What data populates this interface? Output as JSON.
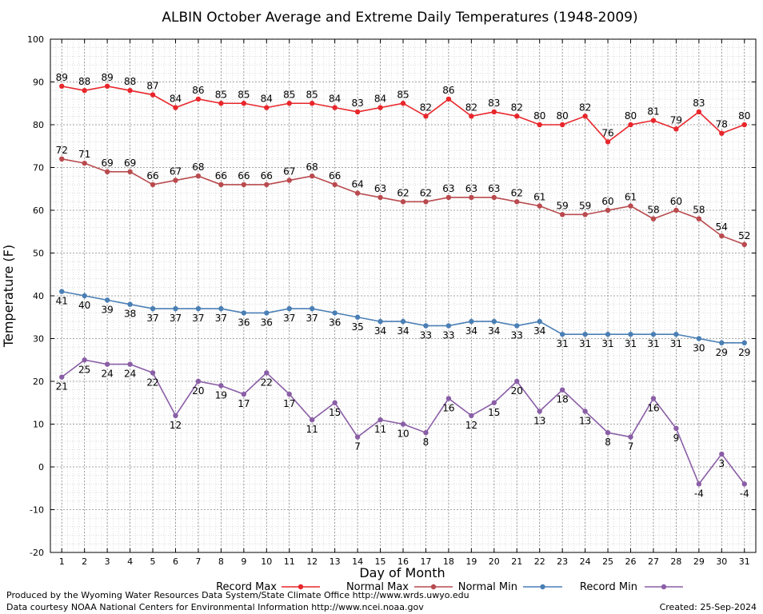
{
  "chart_data": {
    "type": "line",
    "title": "ALBIN October Average and Extreme Daily Temperatures (1948-2009)",
    "xlabel": "Day of Month",
    "ylabel": "Temperature (F)",
    "ylim": [
      -20,
      100
    ],
    "yticks": [
      -20,
      -10,
      0,
      10,
      20,
      30,
      40,
      50,
      60,
      70,
      80,
      90,
      100
    ],
    "x": [
      1,
      2,
      3,
      4,
      5,
      6,
      7,
      8,
      9,
      10,
      11,
      12,
      13,
      14,
      15,
      16,
      17,
      18,
      19,
      20,
      21,
      22,
      23,
      24,
      25,
      26,
      27,
      28,
      29,
      30,
      31
    ],
    "grid": true,
    "legend_position": "bottom",
    "series": [
      {
        "name": "Record Max",
        "color": "#e8262b",
        "label_position": "above",
        "values": [
          89,
          88,
          89,
          88,
          87,
          84,
          86,
          85,
          85,
          84,
          85,
          85,
          84,
          83,
          84,
          85,
          82,
          86,
          82,
          83,
          82,
          80,
          80,
          82,
          76,
          80,
          81,
          79,
          83,
          78,
          80
        ]
      },
      {
        "name": "Normal Max",
        "color": "#b94a4e",
        "label_position": "above",
        "values": [
          72,
          71,
          69,
          69,
          66,
          67,
          68,
          66,
          66,
          66,
          67,
          68,
          66,
          64,
          63,
          62,
          62,
          63,
          63,
          63,
          62,
          61,
          59,
          59,
          60,
          61,
          58,
          60,
          58,
          54,
          52
        ]
      },
      {
        "name": "Normal Min",
        "color": "#4a7fb5",
        "label_position": "below",
        "values": [
          41,
          40,
          39,
          38,
          37,
          37,
          37,
          37,
          36,
          36,
          37,
          37,
          36,
          35,
          34,
          34,
          33,
          33,
          34,
          34,
          33,
          34,
          31,
          31,
          31,
          31,
          31,
          31,
          30,
          29,
          29
        ]
      },
      {
        "name": "Record Min",
        "color": "#8a5ea6",
        "label_position": "below",
        "values": [
          21,
          25,
          24,
          24,
          22,
          12,
          20,
          19,
          17,
          22,
          17,
          11,
          15,
          7,
          11,
          10,
          8,
          16,
          12,
          15,
          20,
          13,
          18,
          13,
          8,
          7,
          16,
          9,
          -4,
          3,
          -4
        ]
      }
    ]
  },
  "footer": {
    "credit_line1": "Produced by the Wyoming Water Resources Data System/State Climate Office http://www.wrds.uwyo.edu",
    "credit_line2": "Data courtesy NOAA National Centers for Environmental Information http://www.ncei.noaa.gov",
    "created": "Created:  25-Sep-2024"
  }
}
